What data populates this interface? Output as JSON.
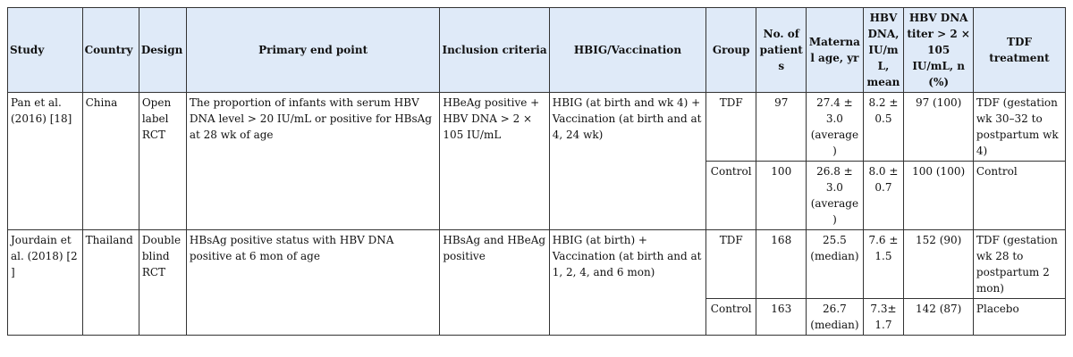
{
  "headers": {
    "study": "Study",
    "country": "Country",
    "design": "Design",
    "primary_end_point": "Primary end point",
    "inclusion": "Inclusion criteria",
    "hbig": "HBIG/Vaccination",
    "group": "Group",
    "patients": "No. of patients",
    "maternal_age": "Maternal age, yr",
    "hbv_dna": "HBV DNA, IU/mL, mean",
    "titer": "HBV DNA titer > 2 × 105 IU/mL, n (%)",
    "tdf": "TDF treatment"
  },
  "studies": [
    {
      "study": "Pan et al. (2016) [18]",
      "country": "China",
      "design": "Open label RCT",
      "primary_end_point": "The proportion of infants with serum HBV DNA level > 20 IU/mL or positive for HBsAg at 28 wk of age",
      "inclusion": "HBeAg positive + HBV DNA > 2 × 105 IU/mL",
      "hbig": "HBIG (at birth and wk 4) + Vaccination (at birth and at 4, 24 wk)",
      "groups": [
        {
          "group": "TDF",
          "patients": "97",
          "age": "27.4 ± 3.0 (average)",
          "dna": "8.2 ± 0.5",
          "titer": "97 (100)",
          "tdf": "TDF (gestation wk 30–32 to postpartum wk 4)"
        },
        {
          "group": "Control",
          "patients": "100",
          "age": "26.8 ± 3.0 (average)",
          "dna": "8.0 ± 0.7",
          "titer": "100 (100)",
          "tdf": "Control"
        }
      ]
    },
    {
      "study": "Jourdain et al. (2018) [2 ]",
      "country": "Thailand",
      "design": "Double blind RCT",
      "primary_end_point": "HBsAg positive status with HBV DNA positive at 6 mon of age",
      "inclusion": "HBsAg and HBeAg positive",
      "hbig": "HBIG (at birth) + Vaccination (at birth and at 1, 2, 4, and 6 mon)",
      "groups": [
        {
          "group": "TDF",
          "patients": "168",
          "age": "25.5 (median)",
          "dna": "7.6 ± 1.5",
          "titer": "152 (90)",
          "tdf": "TDF (gestation wk 28 to postpartum 2 mon)"
        },
        {
          "group": "Control",
          "patients": "163",
          "age": "26.7 (median)",
          "dna": "7.3± 1.7",
          "titer": "142 (87)",
          "tdf": "Placebo"
        }
      ]
    }
  ]
}
